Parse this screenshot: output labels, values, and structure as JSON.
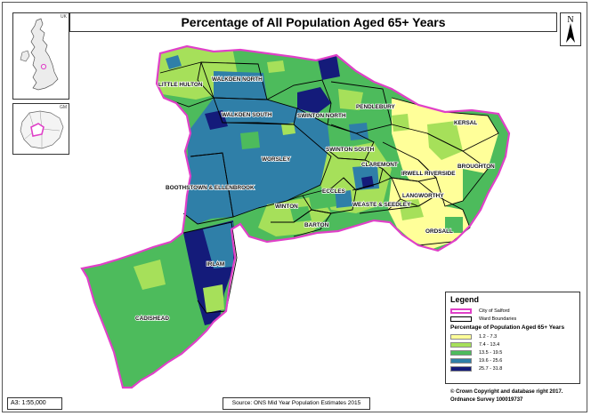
{
  "title": "Percentage of All Population Aged 65+ Years",
  "north_label": "N",
  "insets": {
    "uk_label": "UK",
    "gm_label": "GM"
  },
  "wards": [
    "LITTLE HULTON",
    "WALKDEN NORTH",
    "WALKDEN SOUTH",
    "SWINTON NORTH",
    "PENDLEBURY",
    "KERSAL",
    "SWINTON SOUTH",
    "WORSLEY",
    "BROUGHTON",
    "CLAREMONT",
    "IRWELL RIVERSIDE",
    "BOOTHSTOWN & ELLENBROOK",
    "ECCLES",
    "WEASTE & SEEDLEY",
    "LANGWORTHY",
    "WINTON",
    "BARTON",
    "ORDSALL",
    "IRLAM",
    "CADISHEAD"
  ],
  "legend": {
    "title": "Legend",
    "boundary_items": [
      {
        "label": "City of Salford",
        "color": "#e040c8"
      },
      {
        "label": "Ward Boundaries",
        "color": "#000000"
      }
    ],
    "classes_title": "Percentage of Population Aged 65+ Years",
    "classes": [
      {
        "label": "1.2 - 7.3",
        "color": "#ffff99"
      },
      {
        "label": "7.4 - 13.4",
        "color": "#a6e05a"
      },
      {
        "label": "13.5 - 19.5",
        "color": "#4dbb5c"
      },
      {
        "label": "19.6 - 25.6",
        "color": "#2f7fa8"
      },
      {
        "label": "25.7 - 31.8",
        "color": "#141b7a"
      }
    ]
  },
  "scale": "A3: 1:55,000",
  "source": "Source: ONS Mid Year Population Estimates 2015",
  "copyright": {
    "line1": "© Crown Copyright and database right 2017.",
    "line2": "Ordnance Survey 100019737"
  }
}
